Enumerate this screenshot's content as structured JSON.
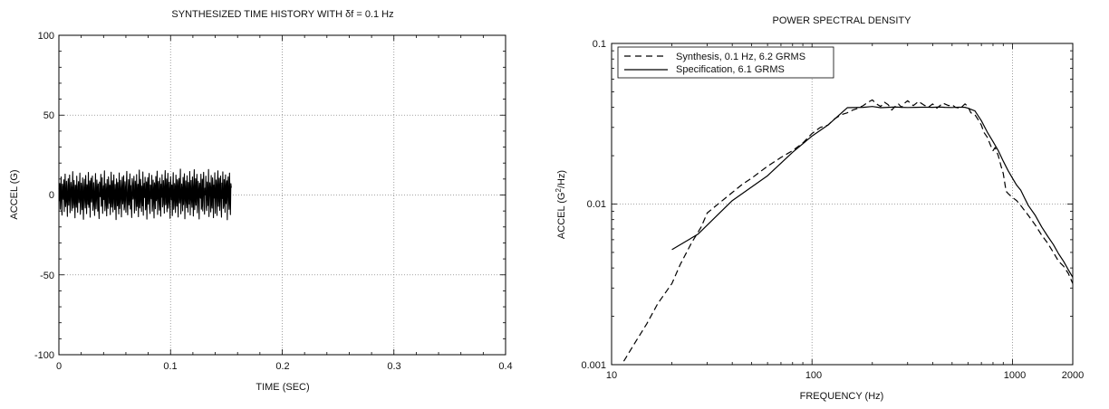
{
  "chart_data": [
    {
      "type": "line",
      "title": "SYNTHESIZED TIME HISTORY WITH δf = 0.1 Hz",
      "xlabel": "TIME (SEC)",
      "ylabel": "ACCEL (G)",
      "xlim": [
        0,
        0.4
      ],
      "ylim": [
        -100,
        100
      ],
      "xticks": [
        "0",
        "0.1",
        "0.2",
        "0.3",
        "0.4"
      ],
      "yticks": [
        "100",
        "50",
        "0",
        "-50",
        "-100"
      ],
      "grid": true,
      "series": [
        {
          "style": "solid",
          "color": "#000000",
          "sample_interval_sec": 0.0004,
          "values": [
            4.1,
            -3.6,
            7.2,
            -8.9,
            2.4,
            11.3,
            -5.1,
            -12.6,
            6.8,
            3.2,
            -2.7,
            9.5,
            -10.4,
            1.8,
            13.1,
            -7.3,
            -4.2,
            8.6,
            -1.5,
            -13.4,
            5.7,
            10.2,
            -6.4,
            0.9,
            12.5,
            -11.1,
            -3.1,
            7.9,
            4.6,
            -9.8,
            2.1,
            14.6,
            -8.2,
            -5.7,
            9.1,
            -0.6,
            -14.3,
            6.2,
            3.8,
            -7.7,
            11.8,
            -2.2,
            -10.9,
            5.3,
            8.4,
            -4.8,
            1.2,
            13.7,
            -12.1,
            -6.9,
            7.4,
            2.9,
            -9.2,
            10.7,
            -1.9,
            -15.2,
            4.8,
            9.9,
            -3.4,
            -8.1,
            12.2,
            0.4,
            -11.7,
            6.5,
            3.5,
            -5.9,
            14.1,
            -7.8,
            -2.5,
            8.8,
            -13.9,
            5.1,
            10.5,
            -4.4,
            1.6,
            11.9,
            -9.6,
            -6.1,
            7.7,
            -0.2,
            -12.8,
            4.3,
            13.4,
            -8.7,
            -3.8,
            9.4,
            2.6,
            -10.1,
            6.9,
            -5.4,
            -14.8,
            8.1,
            3.9,
            -1.1,
            12.9,
            -7.1,
            -4.6,
            10.8,
            -11.5,
            0.7,
            5.8,
            -2.9,
            15.1,
            -9.9,
            -6.6,
            7.1,
            1.4,
            -13.1,
            9.7,
            -3.2,
            -8.4,
            11.4,
            4.5,
            -5.2,
            6.1,
            -12.3,
            2.3,
            14.3,
            -7.6,
            -1.7,
            8.9,
            -10.6,
            3.1,
            12.6,
            -4.9,
            -9.1,
            6.6,
            0.2,
            -15.4,
            10.1,
            5.5,
            -6.8,
            7.8,
            -2.1,
            -11.9,
            13.8,
            -8.5,
            -3.3,
            9.2,
            1.9,
            -13.7,
            4.7,
            11.2,
            -5.6,
            -0.8,
            12.1,
            -9.4,
            -7.4,
            8.3,
            3.6,
            -10.8,
            6.4,
            14.8,
            -4.1,
            -12.4,
            2.7,
            9.6,
            -6.3,
            -1.3,
            13.2,
            -8.8,
            5.9,
            -3.7,
            -14.1,
            10.3,
            7.5,
            -2.6,
            0.5,
            11.7,
            -11.3,
            -5.3,
            8.7,
            4.2,
            -9.7,
            12.8,
            -7.2,
            -0.4,
            6.7,
            -13.6,
            3.4,
            15.6,
            -8.1,
            -4.5,
            9.8,
            1.1,
            -10.3,
            5.6,
            -6.7,
            14.4,
            -12.7,
            2.2,
            7.3,
            -1.6,
            11.1,
            -9.3,
            -3.9,
            8.2,
            -15.1,
            4.9,
            10.9,
            -5.8,
            0.8,
            13.5,
            -7.9,
            -11.6,
            6.3,
            3.3,
            -2.4,
            12.3,
            -10.2,
            -6.2,
            9.3,
            1.7,
            -14.4,
            7.6,
            4.4,
            -8.6,
            11.6,
            -3.5,
            -0.9,
            14.9,
            -12.2,
            5.2,
            8.5,
            -4.3,
            -9.5,
            10.6,
            2.5,
            -13.3,
            6.8,
            -1.4,
            12.7,
            -7.5,
            -5.5,
            9.0,
            3.7,
            -11.4,
            7.0,
            15.3,
            -6.1,
            -2.8,
            10.0,
            -10.5,
            1.3,
            13.6,
            -8.3,
            -4.7,
            8.0,
            0.3,
            -14.6,
            11.5,
            5.4,
            -3.0,
            6.2,
            -12.9,
            2.8,
            14.0,
            -9.0,
            -6.5,
            7.2,
            4.0,
            -11.0,
            12.4,
            -1.8,
            -7.0,
            9.6,
            3.0,
            -13.8,
            8.4,
            10.4,
            -5.0,
            -0.7,
            16.2,
            -11.8,
            -3.6,
            6.9,
            2.0,
            -9.9,
            11.0,
            -6.0,
            4.6,
            13.3,
            -14.9,
            1.0,
            8.8,
            -4.0,
            -8.0,
            12.0,
            -2.3,
            -10.7,
            7.9,
            5.0,
            -5.7,
            14.7,
            -12.5,
            0.6,
            9.1,
            -3.1,
            -7.7,
            11.3,
            3.2,
            -13.2,
            6.0,
            15.8,
            -9.2,
            -1.2,
            10.2,
            -6.4,
            4.1,
            12.9,
            -11.2,
            -4.4,
            8.6,
            1.5,
            -15.0,
            7.4,
            2.9,
            -2.0,
            13.0,
            -8.9,
            -5.9,
            9.9,
            -10.0,
            6.5,
            14.2,
            -3.4,
            -12.0,
            4.3,
            0.1,
            11.8,
            -7.3,
            -9.8,
            8.1,
            3.5,
            -6.6,
            16.0,
            -13.5,
            -0.5,
            7.7,
            2.4,
            -10.6,
            12.2,
            -5.1,
            -8.2,
            10.7,
            5.7,
            -14.2,
            6.1,
            -1.9,
            13.9,
            -11.5,
            -3.8,
            9.4,
            4.8,
            -12.8,
            8.0,
            15.1,
            -7.1,
            -0.3,
            10.5,
            -9.6,
            2.6,
            11.9,
            -4.6,
            -13.9,
            7.5,
            -2.2,
            14.5,
            -8.4,
            -6.7,
            9.7,
            1.8,
            -10.9,
            12.6,
            -5.4,
            3.8,
            8.9,
            -15.5,
            6.6,
            11.4,
            -3.2,
            -9.0,
            13.7,
            -0.1,
            -12.3,
            7.1,
            4.5
          ]
        }
      ]
    },
    {
      "type": "line",
      "title": "POWER SPECTRAL DENSITY",
      "xlabel": "FREQUENCY (Hz)",
      "ylabel_pre": "ACCEL (G",
      "ylabel_sup": "2",
      "ylabel_post": "/Hz)",
      "xscale": "log",
      "yscale": "log",
      "xlim": [
        10,
        2000
      ],
      "ylim": [
        0.001,
        0.1
      ],
      "xticks": [
        "10",
        "100",
        "1000",
        "2000"
      ],
      "yticks": [
        "0.1",
        "0.01",
        "0.001"
      ],
      "grid": true,
      "legend_position": "top-left",
      "series": [
        {
          "name": "Synthesis, 0.1 Hz, 6.2 GRMS",
          "style": "dashed",
          "color": "#000000",
          "x": [
            11.5,
            13,
            15,
            17,
            20,
            22,
            25,
            28,
            30,
            35,
            40,
            45,
            50,
            60,
            70,
            80,
            90,
            100,
            110,
            120,
            130,
            140,
            150,
            160,
            170,
            180,
            190,
            200,
            210,
            220,
            230,
            240,
            250,
            260,
            270,
            280,
            290,
            300,
            320,
            340,
            360,
            380,
            400,
            420,
            450,
            480,
            500,
            520,
            550,
            580,
            600,
            620,
            650,
            680,
            700,
            720,
            750,
            780,
            800,
            820,
            850,
            880,
            900,
            930,
            960,
            1000,
            1050,
            1100,
            1200,
            1300,
            1400,
            1500,
            1600,
            1700,
            1800,
            1900,
            2000
          ],
          "y": [
            0.00105,
            0.00135,
            0.0018,
            0.0024,
            0.0032,
            0.0042,
            0.0057,
            0.0072,
            0.0088,
            0.0103,
            0.0118,
            0.0133,
            0.0145,
            0.0172,
            0.0195,
            0.0215,
            0.024,
            0.0275,
            0.03,
            0.031,
            0.034,
            0.036,
            0.037,
            0.0385,
            0.0395,
            0.041,
            0.043,
            0.0445,
            0.042,
            0.0405,
            0.043,
            0.0415,
            0.0385,
            0.0405,
            0.042,
            0.04,
            0.0425,
            0.044,
            0.041,
            0.0435,
            0.0415,
            0.04,
            0.042,
            0.0395,
            0.0425,
            0.041,
            0.0415,
            0.04,
            0.0395,
            0.042,
            0.0405,
            0.037,
            0.036,
            0.033,
            0.031,
            0.028,
            0.026,
            0.023,
            0.0215,
            0.0225,
            0.02,
            0.017,
            0.0155,
            0.012,
            0.0115,
            0.011,
            0.0105,
            0.0098,
            0.0085,
            0.0074,
            0.0064,
            0.0057,
            0.005,
            0.0044,
            0.0041,
            0.0037,
            0.0032
          ]
        },
        {
          "name": "Specification, 6.1 GRMS",
          "style": "solid",
          "color": "#000000",
          "x": [
            20,
            27,
            40,
            60,
            80,
            100,
            120,
            150,
            180,
            200,
            220,
            240,
            260,
            280,
            300,
            330,
            360,
            400,
            430,
            460,
            500,
            540,
            580,
            600,
            650,
            700,
            750,
            800,
            850,
            900,
            950,
            1000,
            1050,
            1100,
            1150,
            1200,
            1300,
            1400,
            1500,
            1600,
            1700,
            1800,
            1900,
            2000
          ],
          "y": [
            0.0052,
            0.0065,
            0.0105,
            0.015,
            0.021,
            0.0265,
            0.031,
            0.0398,
            0.04,
            0.0405,
            0.0398,
            0.04,
            0.0402,
            0.04,
            0.0399,
            0.04,
            0.0401,
            0.04,
            0.0402,
            0.04,
            0.0399,
            0.0401,
            0.04,
            0.0395,
            0.038,
            0.033,
            0.028,
            0.0245,
            0.0215,
            0.0185,
            0.0162,
            0.0145,
            0.0131,
            0.0122,
            0.0109,
            0.0098,
            0.0085,
            0.0072,
            0.0063,
            0.0056,
            0.0049,
            0.0044,
            0.0039,
            0.0035
          ]
        }
      ]
    }
  ]
}
